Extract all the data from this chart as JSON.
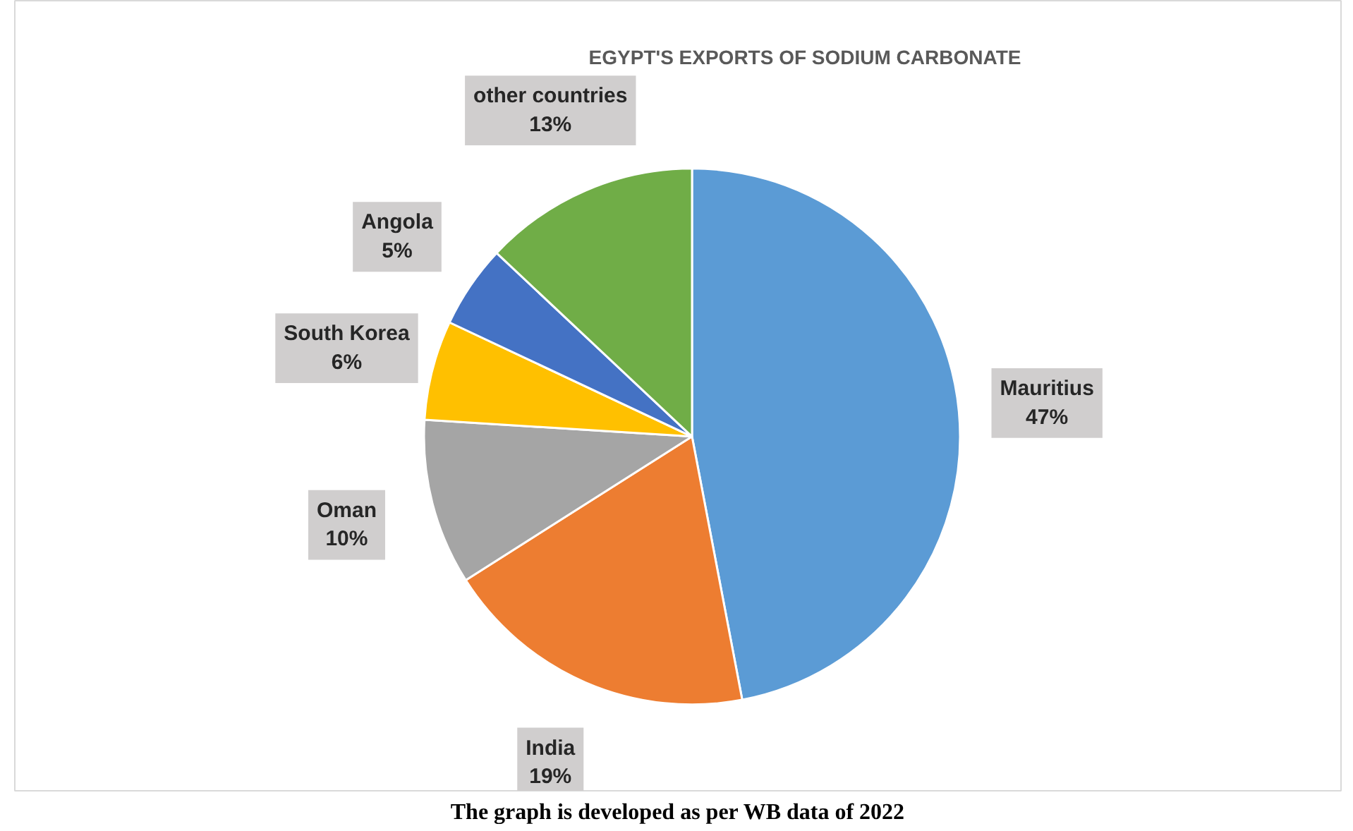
{
  "chart_data": {
    "type": "pie",
    "title": "EGYPT'S EXPORTS OF SODIUM CARBONATE",
    "categories": [
      "Mauritius",
      "India",
      "Oman",
      "South Korea",
      "Angola",
      "other countries"
    ],
    "values": [
      47,
      19,
      10,
      6,
      5,
      13
    ],
    "colors": [
      "#5b9bd5",
      "#ed7d31",
      "#a5a5a5",
      "#ffc000",
      "#4472c4",
      "#70ad47"
    ],
    "value_labels": [
      "47%",
      "19%",
      "10%",
      "6%",
      "5%",
      "13%"
    ],
    "annotations": [
      "The graph is developed as per WB data of 2022"
    ]
  }
}
